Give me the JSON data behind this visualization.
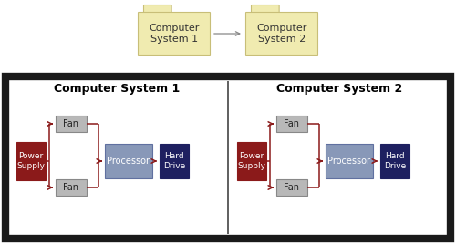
{
  "bg_color": "#ffffff",
  "top_folder_color": "#f0ebb0",
  "top_folder_border": "#c8be78",
  "top_folder_text_color": "#333333",
  "main_border_color": "#1a1a1a",
  "divider_color": "#444444",
  "section_title_color": "#000000",
  "power_supply_color": "#8b1a1a",
  "fan_color": "#b8b8b8",
  "fan_border_color": "#888888",
  "processor_color": "#8898b8",
  "processor_border_color": "#6070a0",
  "hard_drive_color": "#1e2060",
  "box_text_color": "#ffffff",
  "fan_text_color": "#222222",
  "arrow_color": "#8b1a1a",
  "arrow_color_top": "#888888",
  "folder_labels": [
    "Computer\nSystem 1",
    "Computer\nSystem 2"
  ],
  "section_labels": [
    "Computer System 1",
    "Computer System 2"
  ],
  "fig_w": 5.0,
  "fig_h": 2.67,
  "dpi": 100
}
